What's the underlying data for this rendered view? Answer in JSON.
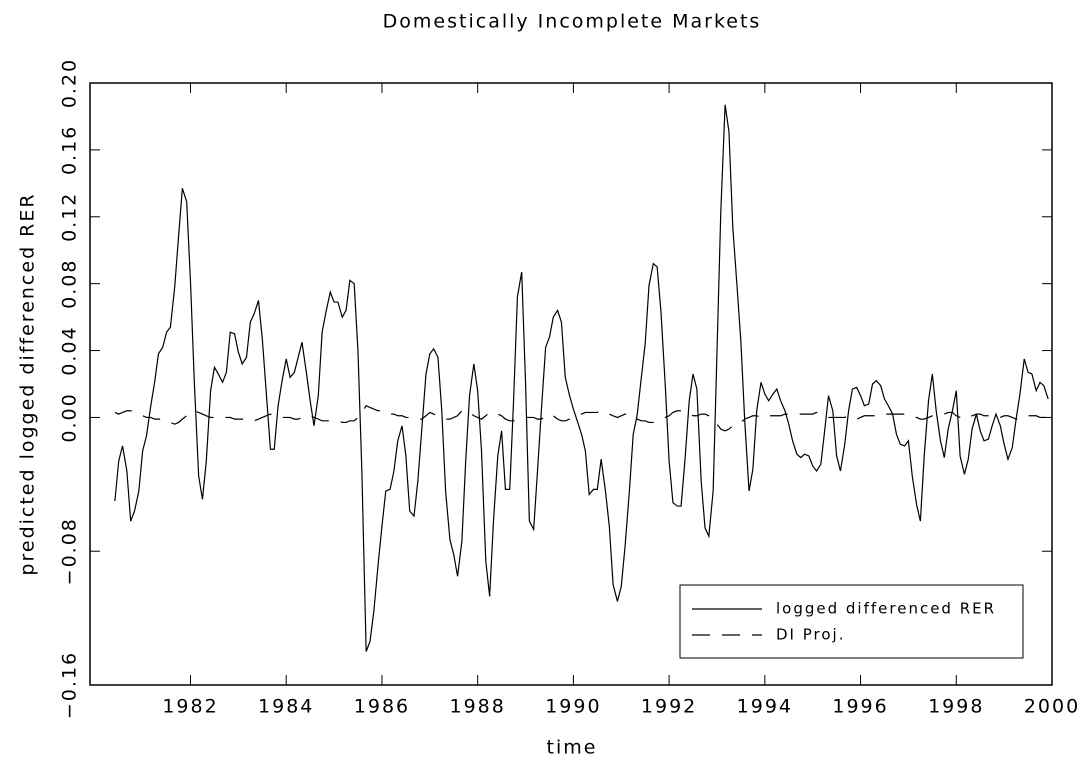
{
  "chart_data": {
    "type": "line",
    "title": "Domestically Incomplete Markets",
    "xlabel": "time",
    "ylabel": "predicted logged differenced RER",
    "x": [
      1980.42,
      1980.5,
      1980.58,
      1980.67,
      1980.75,
      1980.83,
      1980.92,
      1981.0,
      1981.08,
      1981.17,
      1981.25,
      1981.33,
      1981.42,
      1981.5,
      1981.58,
      1981.67,
      1981.75,
      1981.83,
      1981.92,
      1982.0,
      1982.08,
      1982.17,
      1982.25,
      1982.33,
      1982.42,
      1982.5,
      1982.58,
      1982.67,
      1982.75,
      1982.83,
      1982.92,
      1983.0,
      1983.08,
      1983.17,
      1983.25,
      1983.33,
      1983.42,
      1983.5,
      1983.58,
      1983.67,
      1983.75,
      1983.83,
      1983.92,
      1984.0,
      1984.08,
      1984.17,
      1984.25,
      1984.33,
      1984.42,
      1984.5,
      1984.58,
      1984.67,
      1984.75,
      1984.83,
      1984.92,
      1985.0,
      1985.08,
      1985.17,
      1985.25,
      1985.33,
      1985.42,
      1985.5,
      1985.58,
      1985.67,
      1985.75,
      1985.83,
      1985.92,
      1986.0,
      1986.08,
      1986.17,
      1986.25,
      1986.33,
      1986.42,
      1986.5,
      1986.58,
      1986.67,
      1986.75,
      1986.83,
      1986.92,
      1987.0,
      1987.08,
      1987.17,
      1987.25,
      1987.33,
      1987.42,
      1987.5,
      1987.58,
      1987.67,
      1987.75,
      1987.83,
      1987.92,
      1988.0,
      1988.08,
      1988.17,
      1988.25,
      1988.33,
      1988.42,
      1988.5,
      1988.58,
      1988.67,
      1988.75,
      1988.83,
      1988.92,
      1989.0,
      1989.08,
      1989.17,
      1989.25,
      1989.33,
      1989.42,
      1989.5,
      1989.58,
      1989.67,
      1989.75,
      1989.83,
      1989.92,
      1990.0,
      1990.08,
      1990.17,
      1990.25,
      1990.33,
      1990.42,
      1990.5,
      1990.58,
      1990.67,
      1990.75,
      1990.83,
      1990.92,
      1991.0,
      1991.08,
      1991.17,
      1991.25,
      1991.33,
      1991.42,
      1991.5,
      1991.58,
      1991.67,
      1991.75,
      1991.83,
      1991.92,
      1992.0,
      1992.08,
      1992.17,
      1992.25,
      1992.33,
      1992.42,
      1992.5,
      1992.58,
      1992.67,
      1992.75,
      1992.83,
      1992.92,
      1993.0,
      1993.08,
      1993.17,
      1993.25,
      1993.33,
      1993.42,
      1993.5,
      1993.58,
      1993.67,
      1993.75,
      1993.83,
      1993.92,
      1994.0,
      1994.08,
      1994.17,
      1994.25,
      1994.33,
      1994.42,
      1994.5,
      1994.58,
      1994.67,
      1994.75,
      1994.83,
      1994.92,
      1995.0,
      1995.08,
      1995.17,
      1995.25,
      1995.33,
      1995.42,
      1995.5,
      1995.58,
      1995.67,
      1995.75,
      1995.83,
      1995.92,
      1996.0,
      1996.08,
      1996.17,
      1996.25,
      1996.33,
      1996.42,
      1996.5,
      1996.58,
      1996.67,
      1996.75,
      1996.83,
      1996.92,
      1997.0,
      1997.08,
      1997.17,
      1997.25,
      1997.33,
      1997.42,
      1997.5,
      1997.58,
      1997.67,
      1997.75,
      1997.83,
      1997.92,
      1998.0,
      1998.08,
      1998.17,
      1998.25,
      1998.33,
      1998.42,
      1998.5,
      1998.58,
      1998.67,
      1998.75,
      1998.83,
      1998.92,
      1999.0,
      1999.08,
      1999.17,
      1999.25,
      1999.33,
      1999.42,
      1999.5,
      1999.58,
      1999.67,
      1999.75,
      1999.83,
      1999.92
    ],
    "series": [
      {
        "name": "logged differenced RER",
        "color": "#000000",
        "line_style": "solid",
        "values": [
          -0.05,
          -0.026,
          -0.017,
          -0.032,
          -0.062,
          -0.056,
          -0.044,
          -0.02,
          -0.011,
          0.007,
          0.021,
          0.038,
          0.042,
          0.051,
          0.054,
          0.078,
          0.108,
          0.137,
          0.129,
          0.081,
          0.021,
          -0.035,
          -0.049,
          -0.026,
          0.016,
          0.03,
          0.026,
          0.021,
          0.027,
          0.051,
          0.05,
          0.039,
          0.032,
          0.036,
          0.057,
          0.062,
          0.07,
          0.047,
          0.016,
          -0.019,
          -0.019,
          0.007,
          0.023,
          0.035,
          0.024,
          0.027,
          0.036,
          0.045,
          0.027,
          0.01,
          -0.005,
          0.013,
          0.051,
          0.063,
          0.075,
          0.069,
          0.069,
          0.06,
          0.064,
          0.082,
          0.08,
          0.039,
          -0.032,
          -0.14,
          -0.134,
          -0.116,
          -0.088,
          -0.065,
          -0.044,
          -0.043,
          -0.032,
          -0.014,
          -0.005,
          -0.023,
          -0.056,
          -0.059,
          -0.038,
          -0.008,
          0.026,
          0.038,
          0.041,
          0.036,
          0.004,
          -0.044,
          -0.073,
          -0.082,
          -0.095,
          -0.074,
          -0.026,
          0.013,
          0.032,
          0.016,
          -0.02,
          -0.086,
          -0.107,
          -0.062,
          -0.023,
          -0.008,
          -0.043,
          -0.043,
          0.01,
          0.072,
          0.087,
          0.021,
          -0.062,
          -0.067,
          -0.032,
          0.004,
          0.042,
          0.048,
          0.06,
          0.064,
          0.057,
          0.024,
          0.013,
          0.005,
          -0.002,
          -0.01,
          -0.02,
          -0.046,
          -0.043,
          -0.043,
          -0.025,
          -0.044,
          -0.065,
          -0.1,
          -0.11,
          -0.101,
          -0.077,
          -0.044,
          -0.01,
          0.001,
          0.024,
          0.044,
          0.079,
          0.092,
          0.09,
          0.063,
          0.019,
          -0.026,
          -0.051,
          -0.053,
          -0.053,
          -0.026,
          0.01,
          0.026,
          0.017,
          -0.038,
          -0.066,
          -0.071,
          -0.044,
          0.039,
          0.123,
          0.187,
          0.171,
          0.114,
          0.078,
          0.045,
          -0.002,
          -0.044,
          -0.031,
          0.004,
          0.021,
          0.014,
          0.01,
          0.014,
          0.017,
          0.01,
          0.004,
          -0.004,
          -0.014,
          -0.022,
          -0.024,
          -0.022,
          -0.023,
          -0.029,
          -0.032,
          -0.028,
          -0.008,
          0.013,
          0.004,
          -0.023,
          -0.032,
          -0.016,
          0.004,
          0.017,
          0.018,
          0.013,
          0.007,
          0.008,
          0.02,
          0.022,
          0.019,
          0.011,
          0.007,
          0.002,
          -0.01,
          -0.016,
          -0.017,
          -0.014,
          -0.035,
          -0.052,
          -0.062,
          -0.023,
          0.01,
          0.026,
          0.004,
          -0.014,
          -0.024,
          -0.007,
          0.004,
          0.016,
          -0.023,
          -0.034,
          -0.025,
          -0.007,
          0.002,
          -0.008,
          -0.014,
          -0.013,
          -0.005,
          0.002,
          -0.005,
          -0.016,
          -0.025,
          -0.018,
          -0.001,
          0.014,
          0.035,
          0.027,
          0.026,
          0.016,
          0.021,
          0.019,
          0.011
        ]
      },
      {
        "name": "DI Proj.",
        "color": "#000000",
        "line_style": "dashed",
        "values": [
          0.003,
          0.002,
          0.003,
          0.004,
          0.004,
          0.003,
          0.002,
          0.001,
          0.0,
          0.0,
          -0.001,
          -0.001,
          -0.001,
          -0.002,
          -0.003,
          -0.004,
          -0.003,
          -0.001,
          0.001,
          0.003,
          0.004,
          0.003,
          0.002,
          0.001,
          0.0,
          0.0,
          0.0,
          0.0,
          0.0,
          0.0,
          -0.001,
          -0.001,
          -0.001,
          -0.002,
          -0.002,
          -0.002,
          -0.001,
          0.0,
          0.001,
          0.002,
          0.001,
          0.0,
          0.0,
          0.0,
          0.0,
          -0.001,
          -0.001,
          0.0,
          0.001,
          0.001,
          0.0,
          -0.001,
          -0.002,
          -0.002,
          -0.002,
          -0.002,
          -0.002,
          -0.003,
          -0.003,
          -0.002,
          -0.002,
          0.0,
          0.003,
          0.007,
          0.006,
          0.005,
          0.004,
          0.004,
          0.003,
          0.002,
          0.002,
          0.001,
          0.001,
          0.0,
          0.0,
          0.0,
          -0.001,
          -0.001,
          0.001,
          0.003,
          0.002,
          0.001,
          0.0,
          -0.001,
          -0.001,
          0.0,
          0.001,
          0.004,
          0.004,
          0.003,
          0.001,
          0.0,
          -0.001,
          0.001,
          0.003,
          0.003,
          0.002,
          0.001,
          -0.001,
          -0.002,
          -0.002,
          -0.001,
          0.0,
          0.0,
          0.0,
          0.0,
          -0.001,
          -0.001,
          0.001,
          0.002,
          0.001,
          -0.001,
          -0.002,
          -0.002,
          -0.001,
          0.0,
          0.001,
          0.002,
          0.003,
          0.003,
          0.003,
          0.003,
          0.004,
          0.003,
          0.002,
          0.001,
          0.0,
          0.001,
          0.002,
          0.002,
          0.001,
          -0.001,
          -0.002,
          -0.002,
          -0.003,
          -0.003,
          -0.002,
          -0.001,
          0.0,
          0.001,
          0.003,
          0.004,
          0.004,
          0.003,
          0.002,
          0.001,
          0.001,
          0.002,
          0.002,
          0.001,
          -0.001,
          -0.004,
          -0.007,
          -0.008,
          -0.007,
          -0.005,
          -0.004,
          -0.003,
          -0.001,
          0.0,
          0.001,
          0.001,
          0.0,
          0.0,
          0.001,
          0.001,
          0.001,
          0.001,
          0.002,
          0.002,
          0.002,
          0.002,
          0.002,
          0.002,
          0.002,
          0.002,
          0.003,
          0.002,
          0.001,
          0.0,
          0.0,
          0.0,
          0.0,
          0.0,
          0.001,
          0.0,
          -0.001,
          0.0,
          0.001,
          0.001,
          0.001,
          0.001,
          0.002,
          0.002,
          0.002,
          0.002,
          0.002,
          0.002,
          0.002,
          0.002,
          0.001,
          0.0,
          -0.001,
          -0.001,
          0.0,
          0.001,
          0.001,
          0.001,
          0.002,
          0.003,
          0.003,
          0.001,
          0.0,
          -0.001,
          0.0,
          0.001,
          0.002,
          0.002,
          0.001,
          0.001,
          0.001,
          0.0,
          0.0,
          0.001,
          0.001,
          0.0,
          -0.001,
          -0.001,
          0.0,
          0.001,
          0.001,
          0.001,
          0.0,
          0.0,
          0.0
        ]
      }
    ],
    "xlim": [
      1979.9,
      2000
    ],
    "ylim": [
      -0.16,
      0.2
    ],
    "xticks": [
      1982,
      1984,
      1986,
      1988,
      1990,
      1992,
      1994,
      1996,
      1998,
      2000
    ],
    "yticks": [
      {
        "value": -0.16,
        "label": "−0.16"
      },
      {
        "value": -0.08,
        "label": "−0.08"
      },
      {
        "value": 0,
        "label": "0.00"
      },
      0.04,
      0.08,
      0.12,
      0.16,
      {
        "value": 0.2,
        "label": "0.20"
      }
    ],
    "legend": "lower right",
    "grid": false
  }
}
